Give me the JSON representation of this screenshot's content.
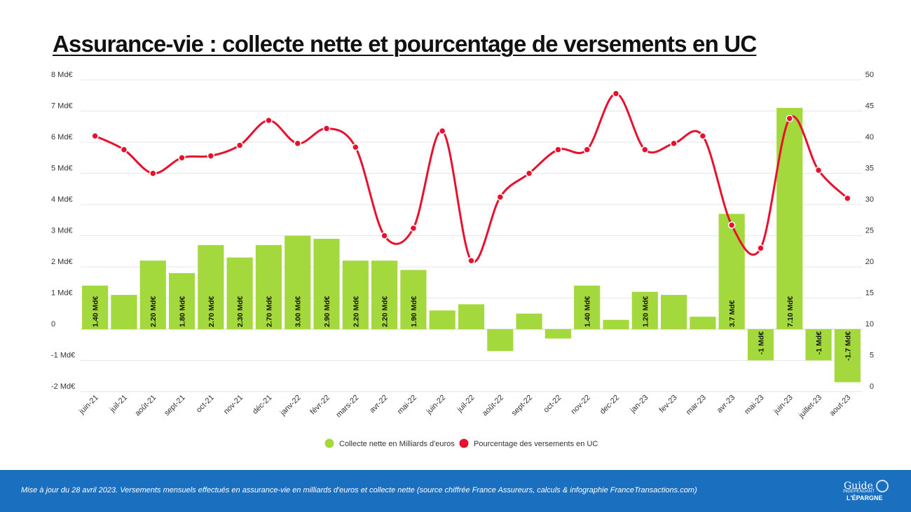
{
  "title": "Assurance-vie : collecte nette et pourcentage de versements en UC",
  "footer": {
    "text": "Mise à jour du 28 avril 2023. Versements mensuels effectués en assurance-vie en milliards d'euros et collecte nette (source chiffrée France Assureurs, calculs & infographie FranceTransactions.com)",
    "logo_line1": "Guide",
    "logo_line2": "INDÉPENDANT",
    "logo_line3": "L'ÉPARGNE"
  },
  "colors": {
    "bar": "#a3d93c",
    "line": "#e8112d",
    "footer": "#1a6fbf",
    "grid": "#e6e6e6"
  },
  "chart_data": {
    "type": "bar+line",
    "title": "Assurance-vie : collecte nette et pourcentage de versements en UC",
    "categories": [
      "juin-21",
      "juil-21",
      "août-21",
      "sept-21",
      "oct-21",
      "nov-21",
      "déc-21",
      "janv-22",
      "févr-22",
      "mars-22",
      "avr-22",
      "mai-22",
      "juin-22",
      "juil-22",
      "août-22",
      "sept-22",
      "oct-22",
      "nov-22",
      "dec-22",
      "jan-23",
      "fev-23",
      "mar-23",
      "avr-23",
      "mai-23",
      "juin-23",
      "juillet-23",
      "aout-23"
    ],
    "left_axis": {
      "ticks": [
        "-2 Md€",
        "-1 Md€",
        "0",
        "1 Md€",
        "2 Md€",
        "3 Md€",
        "4 Md€",
        "5 Md€",
        "6 Md€",
        "7 Md€",
        "8 Md€"
      ],
      "ylim": [
        -2,
        8
      ]
    },
    "right_axis": {
      "ticks": [
        "0",
        "5",
        "10",
        "15",
        "20",
        "25",
        "30",
        "35",
        "40",
        "45",
        "50"
      ],
      "ylim": [
        0,
        50
      ]
    },
    "series": [
      {
        "name": "Collecte nette en Milliards d'euros",
        "type": "bar",
        "axis": "left",
        "values": [
          1.4,
          1.1,
          2.2,
          1.8,
          2.7,
          2.3,
          2.7,
          3.0,
          2.9,
          2.2,
          2.2,
          1.9,
          0.6,
          0.8,
          -0.7,
          0.5,
          -0.3,
          1.4,
          0.3,
          1.2,
          1.1,
          0.4,
          3.7,
          -1.0,
          7.1,
          -1.0,
          -1.7
        ],
        "labels": [
          "1.40 Md€",
          "",
          "2.20 Md€",
          "1.80 Md€",
          "2.70 Md€",
          "2.30 Md€",
          "2.70 Md€",
          "3.00 Md€",
          "2.90 Md€",
          "2.20 Md€",
          "2.20 Md€",
          "1.90 Md€",
          "",
          "",
          "",
          "",
          "",
          "1.40 Md€",
          "",
          "1.20 Md€",
          "",
          "",
          "3.7 Md€",
          "-1 Md€",
          "7.10 Md€",
          "-1 Md€",
          "-1.7 Md€"
        ]
      },
      {
        "name": "Pourcentage des versements en UC",
        "type": "line",
        "axis": "right",
        "values": [
          41,
          38.8,
          35,
          37.5,
          37.8,
          39.5,
          43.5,
          39.8,
          42.2,
          39.2,
          25,
          26.2,
          41.8,
          21,
          31.2,
          35,
          38.8,
          38.8,
          47.8,
          38.8,
          39.8,
          41,
          26.7,
          23,
          43.8,
          35.5,
          31
        ]
      }
    ],
    "legend": {
      "position": "bottom-center",
      "entries": [
        "Collecte nette en Milliards d'euros",
        "Pourcentage des versements en UC"
      ]
    }
  }
}
